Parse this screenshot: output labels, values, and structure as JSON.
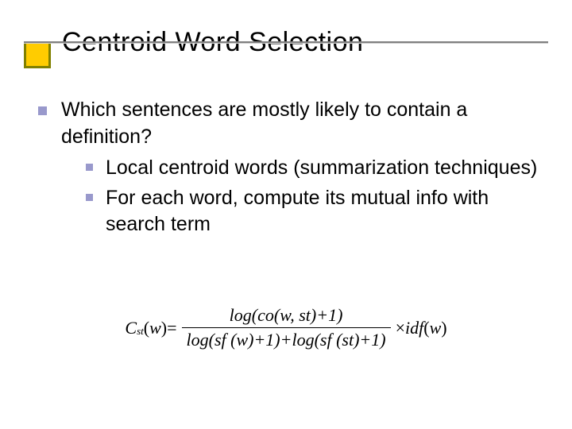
{
  "slide": {
    "title": "Centroid Word Selection",
    "title_fontsize": 34,
    "title_color": "#000000",
    "accent_square": {
      "border_color": "#808000",
      "fill_color": "#ffcc00",
      "border_width": 3,
      "size": 34
    },
    "underline_color": "#808080",
    "background_color": "#ffffff",
    "bullet_color": "#9999cc",
    "body_fontsize": 25,
    "body_color": "#000000",
    "bullets_lvl1": [
      "Which sentences are mostly likely to contain a definition?"
    ],
    "bullets_lvl2": [
      "Local centroid words (summarization techniques)",
      "For each word, compute its mutual info with search term"
    ],
    "formula": {
      "lhs_var": "C",
      "lhs_sub": "st",
      "lhs_arg_open": "(",
      "lhs_arg": "w",
      "lhs_arg_close": ")",
      "equals": " = ",
      "numerator": "log(co(w, st)+1)",
      "denominator": "log(sf (w)+1)+log(sf (st)+1)",
      "times": " × ",
      "rhs_fn": "idf",
      "rhs_arg_open": " (",
      "rhs_arg": "w",
      "rhs_arg_close": ")",
      "font_family": "Times New Roman",
      "fontsize": 22,
      "color": "#000000"
    }
  }
}
